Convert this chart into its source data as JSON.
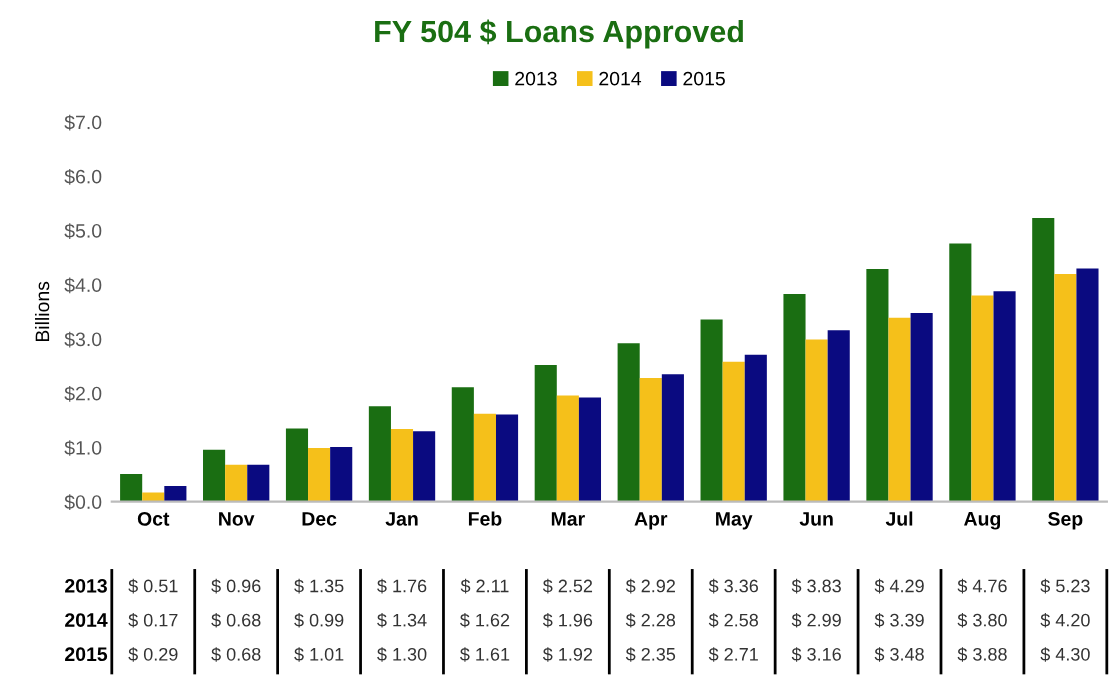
{
  "chart_data": {
    "type": "bar",
    "title": "FY 504 $ Loans Approved",
    "ylabel": "Billions",
    "categories": [
      "Oct",
      "Nov",
      "Dec",
      "Jan",
      "Feb",
      "Mar",
      "Apr",
      "May",
      "Jun",
      "Jul",
      "Aug",
      "Sep"
    ],
    "series": [
      {
        "name": "2013",
        "color": "#1a6e12",
        "values": [
          0.51,
          0.96,
          1.35,
          1.76,
          2.11,
          2.52,
          2.92,
          3.36,
          3.83,
          4.29,
          4.76,
          5.23
        ],
        "value_labels": [
          "$ 0.51",
          "$ 0.96",
          "$ 1.35",
          "$ 1.76",
          "$ 2.11",
          "$ 2.52",
          "$ 2.92",
          "$ 3.36",
          "$ 3.83",
          "$ 4.29",
          "$ 4.76",
          "$ 5.23"
        ]
      },
      {
        "name": "2014",
        "color": "#f5c01a",
        "values": [
          0.17,
          0.68,
          0.99,
          1.34,
          1.62,
          1.96,
          2.28,
          2.58,
          2.99,
          3.39,
          3.8,
          4.2
        ],
        "value_labels": [
          "$ 0.17",
          "$ 0.68",
          "$ 0.99",
          "$ 1.34",
          "$ 1.62",
          "$ 1.96",
          "$ 2.28",
          "$ 2.58",
          "$ 2.99",
          "$ 3.39",
          "$ 3.80",
          "$ 4.20"
        ]
      },
      {
        "name": "2015",
        "color": "#0a0a80",
        "values": [
          0.29,
          0.68,
          1.01,
          1.3,
          1.61,
          1.92,
          2.35,
          2.71,
          3.16,
          3.48,
          3.88,
          4.3
        ],
        "value_labels": [
          "$ 0.29",
          "$ 0.68",
          "$ 1.01",
          "$ 1.30",
          "$ 1.61",
          "$ 1.92",
          "$ 2.35",
          "$ 2.71",
          "$ 3.16",
          "$ 3.48",
          "$ 3.88",
          "$ 4.30"
        ]
      }
    ],
    "ylim": [
      0,
      7
    ],
    "yticks": [
      {
        "value": 0,
        "label": "$0.0"
      },
      {
        "value": 1,
        "label": "$1.0"
      },
      {
        "value": 2,
        "label": "$2.0"
      },
      {
        "value": 3,
        "label": "$3.0"
      },
      {
        "value": 4,
        "label": "$4.0"
      },
      {
        "value": 5,
        "label": "$5.0"
      },
      {
        "value": 6,
        "label": "$6.0"
      },
      {
        "value": 7,
        "label": "$7.0"
      }
    ],
    "grid": false,
    "legend": "top"
  }
}
